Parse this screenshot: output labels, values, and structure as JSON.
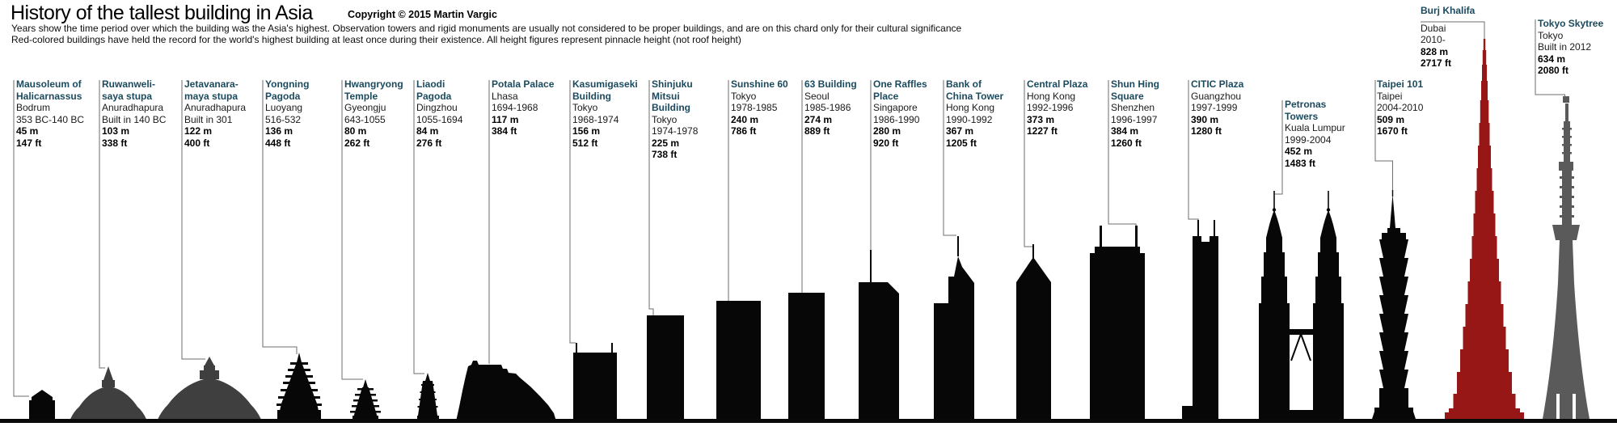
{
  "header": {
    "title": "History of the tallest building in Asia",
    "copyright": "Copyright © 2015 Martin Vargic",
    "subtitle_line1": "Years show the time period over which the building was the Asia's highest. Observation towers and rigid monuments are usually not considered to be proper buildings, and are on this chard only for their cultural significance",
    "subtitle_line2": "Red-colored buildings have held the record for the world's highest building at least once during  their existence. All height figures represent pinnacle height (not roof height)"
  },
  "colors": {
    "name_blue": "#1b4a5e",
    "silhouette_black": "#070707",
    "stupa_gray": "#3f3f3f",
    "skytree_gray": "#5a5a5a",
    "record_red": "#971616",
    "leader_gray": "#6e6e6e",
    "ground_black": "#0a0a0a"
  },
  "buildings": [
    {
      "name": "Mausoleum of Halicarnassus",
      "name_lines": [
        "Mausoleum of",
        "Halicarnassus"
      ],
      "city": "Bodrum",
      "years": "353 BC-140 BC",
      "height_m": "45 m",
      "height_ft": "147 ft"
    },
    {
      "name": "Ruwanweli-saya stupa",
      "name_lines": [
        "Ruwanweli-",
        "saya stupa"
      ],
      "city": "Anuradhapura",
      "years": "Built in 140 BC",
      "height_m": "103 m",
      "height_ft": "338 ft"
    },
    {
      "name": "Jetavanara-maya stupa",
      "name_lines": [
        "Jetavanara-",
        "maya stupa"
      ],
      "city": "Anuradhapura",
      "years": "Built in 301",
      "height_m": "122 m",
      "height_ft": "400 ft"
    },
    {
      "name": "Yongning Pagoda",
      "name_lines": [
        "Yongning",
        "Pagoda"
      ],
      "city": "Luoyang",
      "years": "516-532",
      "height_m": "136 m",
      "height_ft": "448 ft"
    },
    {
      "name": "Hwangryong Temple",
      "name_lines": [
        "Hwangryong",
        "Temple"
      ],
      "city": "Gyeongju",
      "years": "643-1055",
      "height_m": "80 m",
      "height_ft": "262 ft"
    },
    {
      "name": "Liaodi Pagoda",
      "name_lines": [
        "Liaodi",
        "Pagoda"
      ],
      "city": "Dingzhou",
      "years": "1055-1694",
      "height_m": "84 m",
      "height_ft": "276 ft"
    },
    {
      "name": "Potala Palace",
      "name_lines": [
        "Potala Palace"
      ],
      "city": "Lhasa",
      "years": "1694-1968",
      "height_m": "117 m",
      "height_ft": "384 ft"
    },
    {
      "name": "Kasumigaseki Building",
      "name_lines": [
        "Kasumigaseki",
        "Building"
      ],
      "city": "Tokyo",
      "years": "1968-1974",
      "height_m": "156 m",
      "height_ft": "512 ft"
    },
    {
      "name": "Shinjuku Mitsui Building",
      "name_lines": [
        "Shinjuku",
        "Mitsui",
        "Building"
      ],
      "city": "Tokyo",
      "years": "1974-1978",
      "height_m": "225 m",
      "height_ft": "738 ft"
    },
    {
      "name": "Sunshine 60",
      "name_lines": [
        "Sunshine 60"
      ],
      "city": "Tokyo",
      "years": "1978-1985",
      "height_m": "240 m",
      "height_ft": "786 ft"
    },
    {
      "name": "63 Building",
      "name_lines": [
        "63 Building"
      ],
      "city": "Seoul",
      "years": "1985-1986",
      "height_m": "274 m",
      "height_ft": "889 ft"
    },
    {
      "name": "One Raffles Place",
      "name_lines": [
        "One Raffles",
        "Place"
      ],
      "city": "Singapore",
      "years": "1986-1990",
      "height_m": "280 m",
      "height_ft": "920 ft"
    },
    {
      "name": "Bank of China Tower",
      "name_lines": [
        "Bank of",
        "China Tower"
      ],
      "city": "Hong Kong",
      "years": "1990-1992",
      "height_m": "367 m",
      "height_ft": "1205 ft"
    },
    {
      "name": "Central Plaza",
      "name_lines": [
        "Central Plaza"
      ],
      "city": "Hong Kong",
      "years": "1992-1996",
      "height_m": "373 m",
      "height_ft": "1227 ft"
    },
    {
      "name": "Shun Hing Square",
      "name_lines": [
        "Shun Hing",
        "Square"
      ],
      "city": "Shenzhen",
      "years": "1996-1997",
      "height_m": "384 m",
      "height_ft": "1260 ft"
    },
    {
      "name": "CITIC Plaza",
      "name_lines": [
        "CITIC Plaza"
      ],
      "city": "Guangzhou",
      "years": "1997-1999",
      "height_m": "390 m",
      "height_ft": "1280 ft"
    },
    {
      "name": "Petronas Towers",
      "name_lines": [
        "Petronas",
        "Towers"
      ],
      "city": "Kuala Lumpur",
      "years": "1999-2004",
      "height_m": "452 m",
      "height_ft": "1483 ft"
    },
    {
      "name": "Taipei 101",
      "name_lines": [
        "Taipei 101"
      ],
      "city": "Taipei",
      "years": "2004-2010",
      "height_m": "509 m",
      "height_ft": "1670 ft"
    },
    {
      "name": "Burj Khalifa",
      "name_lines": [
        "Burj Khalifa"
      ],
      "city": "Dubai",
      "years": "2010-",
      "height_m": "828 m",
      "height_ft": "2717 ft"
    },
    {
      "name": "Tokyo Skytree",
      "name_lines": [
        "Tokyo Skytree"
      ],
      "city": "Tokyo",
      "years": "Built in 2012",
      "height_m": "634 m",
      "height_ft": "2080 ft"
    }
  ],
  "chart_data": {
    "type": "bar",
    "title": "History of the tallest building in Asia",
    "categories": [
      "Mausoleum of Halicarnassus",
      "Ruwanweli-saya stupa",
      "Jetavanara-maya stupa",
      "Yongning Pagoda",
      "Hwangryong Temple",
      "Liaodi Pagoda",
      "Potala Palace",
      "Kasumigaseki Building",
      "Shinjuku Mitsui Building",
      "Sunshine 60",
      "63 Building",
      "One Raffles Place",
      "Bank of China Tower",
      "Central Plaza",
      "Shun Hing Square",
      "CITIC Plaza",
      "Petronas Towers",
      "Taipei 101",
      "Burj Khalifa",
      "Tokyo Skytree"
    ],
    "series": [
      {
        "name": "Pinnacle height (m)",
        "values": [
          45,
          103,
          122,
          136,
          80,
          84,
          117,
          156,
          225,
          240,
          274,
          280,
          367,
          373,
          384,
          390,
          452,
          509,
          828,
          634
        ]
      },
      {
        "name": "Pinnacle height (ft)",
        "values": [
          147,
          338,
          400,
          448,
          262,
          276,
          384,
          512,
          738,
          786,
          889,
          920,
          1205,
          1227,
          1260,
          1280,
          1483,
          1670,
          2717,
          2080
        ]
      }
    ],
    "cities": [
      "Bodrum",
      "Anuradhapura",
      "Anuradhapura",
      "Luoyang",
      "Gyeongju",
      "Dingzhou",
      "Lhasa",
      "Tokyo",
      "Tokyo",
      "Tokyo",
      "Seoul",
      "Singapore",
      "Hong Kong",
      "Hong Kong",
      "Shenzhen",
      "Guangzhou",
      "Kuala Lumpur",
      "Taipei",
      "Dubai",
      "Tokyo"
    ],
    "periods": [
      "353 BC-140 BC",
      "Built in 140 BC",
      "Built in 301",
      "516-532",
      "643-1055",
      "1055-1694",
      "1694-1968",
      "1968-1974",
      "1974-1978",
      "1978-1985",
      "1985-1986",
      "1986-1990",
      "1990-1992",
      "1992-1996",
      "1996-1997",
      "1997-1999",
      "1999-2004",
      "2004-2010",
      "2010-",
      "Built in 2012"
    ],
    "highlight_red_world_record": "Burj Khalifa",
    "xlabel": "",
    "ylabel": "Pinnacle height",
    "legend_position": "none",
    "grid": false
  }
}
